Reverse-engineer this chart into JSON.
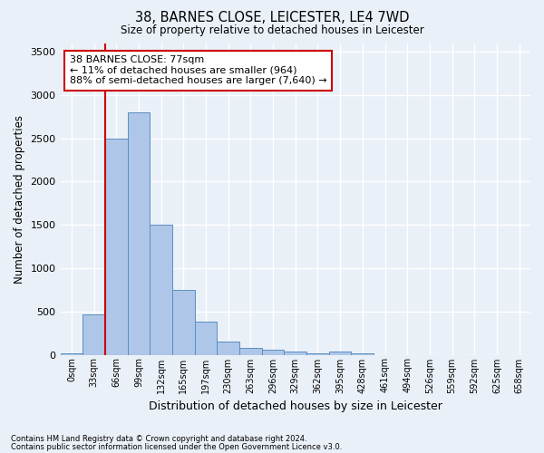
{
  "title": "38, BARNES CLOSE, LEICESTER, LE4 7WD",
  "subtitle": "Size of property relative to detached houses in Leicester",
  "xlabel": "Distribution of detached houses by size in Leicester",
  "ylabel": "Number of detached properties",
  "footnote1": "Contains HM Land Registry data © Crown copyright and database right 2024.",
  "footnote2": "Contains public sector information licensed under the Open Government Licence v3.0.",
  "bar_labels": [
    "0sqm",
    "33sqm",
    "66sqm",
    "99sqm",
    "132sqm",
    "165sqm",
    "197sqm",
    "230sqm",
    "263sqm",
    "296sqm",
    "329sqm",
    "362sqm",
    "395sqm",
    "428sqm",
    "461sqm",
    "494sqm",
    "526sqm",
    "559sqm",
    "592sqm",
    "625sqm",
    "658sqm"
  ],
  "bar_values": [
    20,
    470,
    2500,
    2800,
    1500,
    750,
    380,
    155,
    75,
    55,
    40,
    20,
    40,
    15,
    0,
    0,
    0,
    0,
    0,
    0,
    0
  ],
  "bar_color": "#aec6e8",
  "bar_edge_color": "#5a8fc2",
  "annotation_text": "38 BARNES CLOSE: 77sqm\n← 11% of detached houses are smaller (964)\n88% of semi-detached houses are larger (7,640) →",
  "annotation_box_color": "#ffffff",
  "annotation_box_edge": "#cc0000",
  "vline_color": "#cc0000",
  "bg_color": "#eaf0f8",
  "grid_color": "#ffffff",
  "ylim": [
    0,
    3600
  ],
  "yticks": [
    0,
    500,
    1000,
    1500,
    2000,
    2500,
    3000,
    3500
  ]
}
